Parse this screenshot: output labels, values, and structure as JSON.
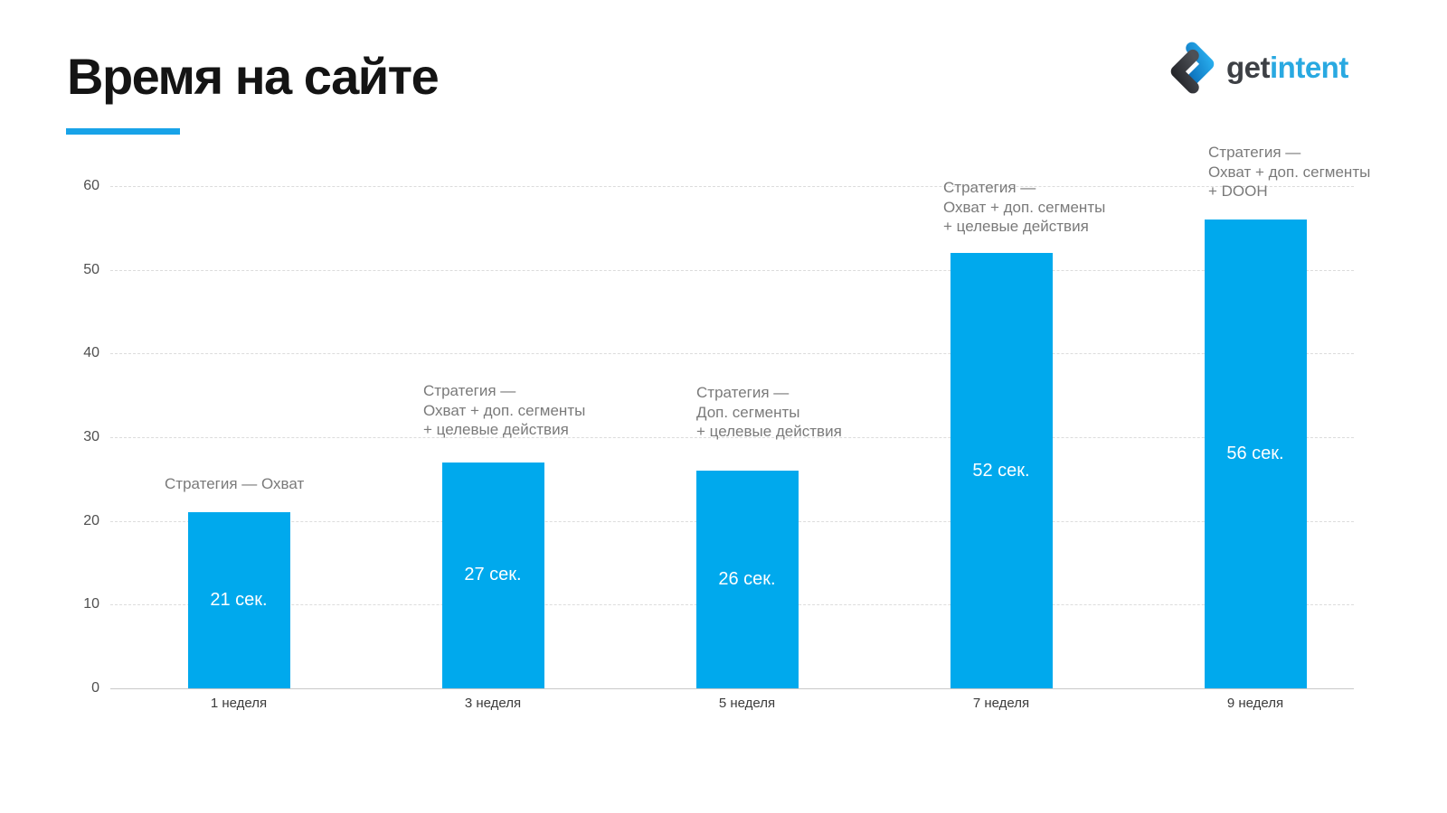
{
  "header": {
    "title": "Время на сайте",
    "accent_color": "#18a3e8"
  },
  "logo": {
    "text_get": "get",
    "text_intent": "intent",
    "get_color": "#3d4045",
    "intent_color": "#29a9e1",
    "icon_blue_dark": "#0d72bd",
    "icon_blue_light": "#2ab1f0",
    "icon_gray_dark": "#212226",
    "icon_gray_light": "#4d5056"
  },
  "chart_data": {
    "type": "bar",
    "title": "Время на сайте",
    "categories": [
      "1 неделя",
      "3 неделя",
      "5 неделя",
      "7 неделя",
      "9 неделя"
    ],
    "values": [
      21,
      27,
      26,
      52,
      56
    ],
    "bar_labels": [
      "21 сек.",
      "27 сек.",
      "26 сек.",
      "52 сек.",
      "56 сек."
    ],
    "annotations": [
      {
        "lines": [
          "Стратегия — Охват"
        ]
      },
      {
        "lines": [
          "Стратегия —",
          "Охват + доп. сегменты",
          "+ целевые действия"
        ]
      },
      {
        "lines": [
          "Стратегия —",
          "Доп. сегменты",
          "+ целевые действия"
        ]
      },
      {
        "lines": [
          "Стратегия —",
          "Охват + доп. сегменты",
          "+ целевые действия"
        ]
      },
      {
        "lines": [
          "Стратегия —",
          "Охват + доп. сегменты",
          "+ DOOH"
        ]
      }
    ],
    "xlabel": "",
    "ylabel": "",
    "ylim": [
      0,
      60
    ],
    "yticks": [
      0,
      10,
      20,
      30,
      40,
      50,
      60
    ],
    "grid": "horizontal-dashed",
    "legend": "none",
    "bar_color": "#00a9ed",
    "value_label_color": "#ffffff",
    "annotation_color": "#7a7a7a"
  }
}
